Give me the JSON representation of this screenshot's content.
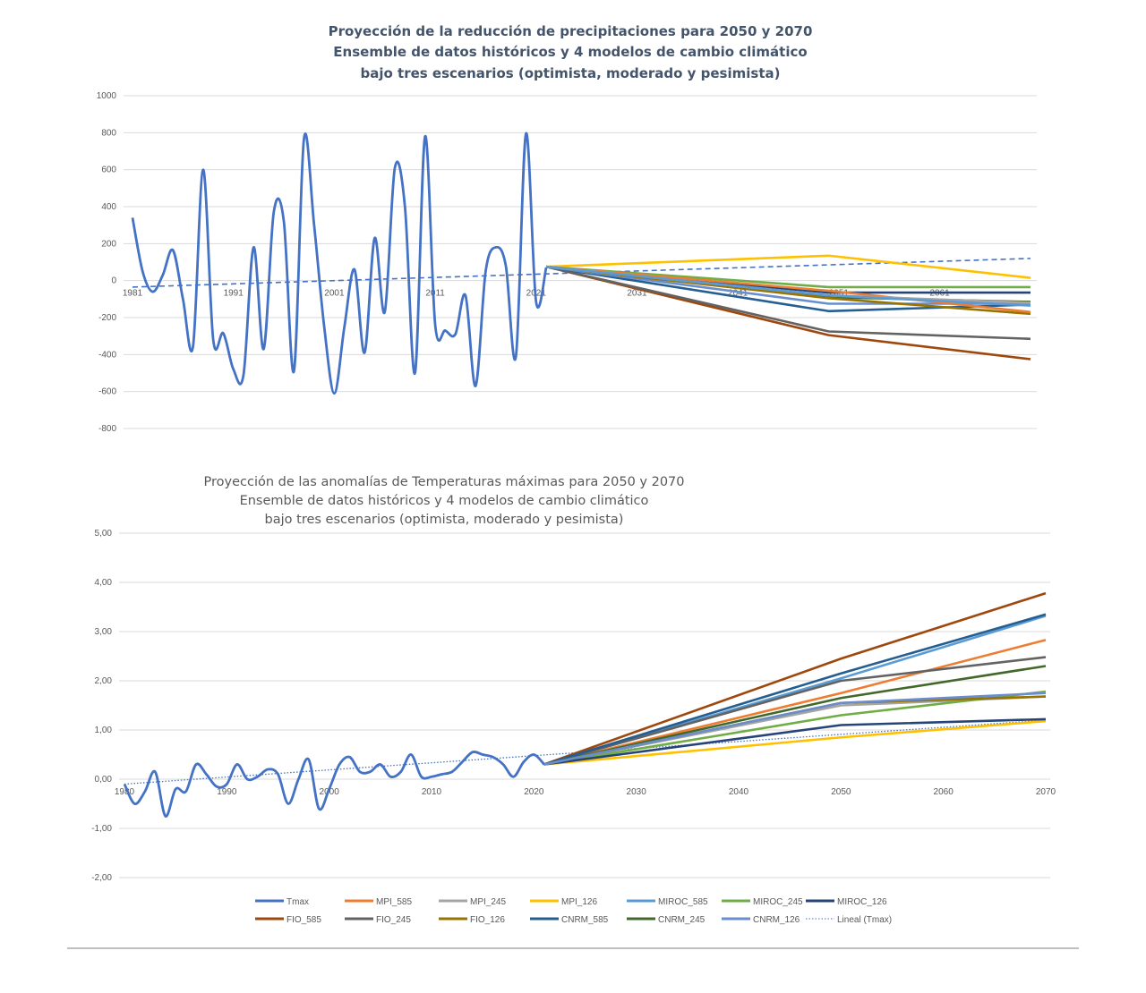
{
  "chart_data": [
    {
      "type": "line",
      "title": [
        "Proyección de la reducción de precipitaciones para 2050 y 2070",
        "Ensemble de datos históricos y  4 modelos de cambio climático",
        "bajo tres escenarios (optimista, moderado y pesimista)"
      ],
      "xlabel": "",
      "ylabel": "",
      "xlim": [
        1981,
        2070
      ],
      "ylim": [
        -800,
        1000
      ],
      "y_ticks": [
        "1000",
        "800",
        "600",
        "400",
        "200",
        "0",
        "-200",
        "-400",
        "-600",
        "-800"
      ],
      "x_ticks": [
        "1981",
        "1991",
        "2001",
        "2011",
        "2021",
        "2031",
        "2041",
        "2051",
        "2061"
      ],
      "grid": true,
      "legend": "none",
      "historical": {
        "color": "#4472C4",
        "x": [
          1981,
          1982,
          1983,
          1984,
          1985,
          1986,
          1987,
          1988,
          1989,
          1990,
          1991,
          1992,
          1993,
          1994,
          1995,
          1996,
          1997,
          1998,
          1999,
          2000,
          2001,
          2002,
          2003,
          2004,
          2005,
          2006,
          2007,
          2008,
          2009,
          2010,
          2011,
          2012,
          2013,
          2014,
          2015,
          2016,
          2017,
          2018,
          2019,
          2020,
          2021,
          2022
        ],
        "y": [
          340,
          50,
          -60,
          30,
          165,
          -100,
          -355,
          600,
          -320,
          -285,
          -480,
          -510,
          180,
          -370,
          370,
          320,
          -490,
          770,
          300,
          -250,
          -610,
          -250,
          60,
          -390,
          230,
          -170,
          610,
          400,
          -500,
          780,
          -240,
          -270,
          -290,
          -80,
          -570,
          50,
          180,
          80,
          -410,
          795,
          -115,
          70
        ]
      },
      "trend": {
        "color": "#4472C4",
        "x": [
          1981,
          2070
        ],
        "y": [
          -35,
          120
        ]
      },
      "projections": {
        "x": [
          2022,
          2050,
          2070
        ],
        "series": [
          {
            "color": "#FFC000",
            "values": [
              75,
              135,
              15
            ]
          },
          {
            "color": "#9E480E",
            "values": [
              75,
              -295,
              -425
            ]
          },
          {
            "color": "#636363",
            "values": [
              75,
              -275,
              -315
            ]
          },
          {
            "color": "#255E91",
            "values": [
              75,
              -165,
              -130
            ]
          },
          {
            "color": "#698ED0",
            "values": [
              75,
              -125,
              -125
            ]
          },
          {
            "color": "#264478",
            "values": [
              75,
              -65,
              -65
            ]
          },
          {
            "color": "#70AD47",
            "values": [
              75,
              -35,
              -35
            ]
          },
          {
            "color": "#43682B",
            "values": [
              75,
              -90,
              -115
            ]
          },
          {
            "color": "#997300",
            "values": [
              75,
              -95,
              -180
            ]
          },
          {
            "color": "#ED7D31",
            "values": [
              75,
              -55,
              -170
            ]
          },
          {
            "color": "#A5A5A5",
            "values": [
              75,
              -80,
              -120
            ]
          },
          {
            "color": "#5B9BD5",
            "values": [
              75,
              -80,
              -135
            ]
          }
        ]
      }
    },
    {
      "type": "line",
      "title": [
        "Proyección  de las anomalías de Temperaturas máximas para 2050 y 2070",
        "Ensemble de datos históricos y 4 modelos de cambio climático",
        "bajo tres escenarios (optimista, moderado y pesimista)"
      ],
      "xlabel": "",
      "ylabel": "",
      "xlim": [
        1980,
        2070
      ],
      "ylim": [
        -2,
        5
      ],
      "y_ticks": [
        "5,00",
        "4,00",
        "3,00",
        "2,00",
        "1,00",
        "0,00",
        "-1,00",
        "-2,00"
      ],
      "x_ticks": [
        "1980",
        "1990",
        "2000",
        "2010",
        "2020",
        "2030",
        "2040",
        "2050",
        "2060",
        "2070"
      ],
      "grid": true,
      "legend": "bottom",
      "historical": {
        "name": "Tmax",
        "color": "#4472C4",
        "x": [
          1980,
          1981,
          1982,
          1983,
          1984,
          1985,
          1986,
          1987,
          1988,
          1989,
          1990,
          1991,
          1992,
          1993,
          1994,
          1995,
          1996,
          1997,
          1998,
          1999,
          2000,
          2001,
          2002,
          2003,
          2004,
          2005,
          2006,
          2007,
          2008,
          2009,
          2010,
          2011,
          2012,
          2013,
          2014,
          2015,
          2016,
          2017,
          2018,
          2019,
          2020,
          2021
        ],
        "y": [
          -0.1,
          -0.5,
          -0.25,
          0.15,
          -0.75,
          -0.2,
          -0.25,
          0.3,
          0.1,
          -0.15,
          -0.1,
          0.3,
          0.0,
          0.05,
          0.2,
          0.1,
          -0.5,
          0.0,
          0.4,
          -0.6,
          -0.2,
          0.3,
          0.45,
          0.15,
          0.15,
          0.3,
          0.05,
          0.15,
          0.5,
          0.05,
          0.05,
          0.1,
          0.15,
          0.35,
          0.55,
          0.5,
          0.45,
          0.3,
          0.05,
          0.35,
          0.5,
          0.3
        ]
      },
      "trend": {
        "name": "Lineal (Tmax)",
        "color": "#4472C4",
        "x": [
          1980,
          2070
        ],
        "y": [
          -0.1,
          1.2
        ]
      },
      "projections": {
        "x": [
          2021,
          2050,
          2070
        ],
        "series": [
          {
            "name": "MPI_585",
            "color": "#ED7D31",
            "values": [
              0.3,
              1.75,
              2.83
            ]
          },
          {
            "name": "MPI_245",
            "color": "#A5A5A5",
            "values": [
              0.3,
              1.5,
              1.68
            ]
          },
          {
            "name": "MPI_126",
            "color": "#FFC000",
            "values": [
              0.3,
              0.85,
              1.18
            ]
          },
          {
            "name": "MIROC_585",
            "color": "#5B9BD5",
            "values": [
              0.3,
              2.05,
              3.32
            ]
          },
          {
            "name": "MIROC_245",
            "color": "#70AD47",
            "values": [
              0.3,
              1.3,
              1.78
            ]
          },
          {
            "name": "MIROC_126",
            "color": "#264478",
            "values": [
              0.3,
              1.1,
              1.22
            ]
          },
          {
            "name": "FIO_585",
            "color": "#9E480E",
            "values": [
              0.3,
              2.45,
              3.78
            ]
          },
          {
            "name": "FIO_245",
            "color": "#636363",
            "values": [
              0.3,
              2.0,
              2.48
            ]
          },
          {
            "name": "FIO_126",
            "color": "#997300",
            "values": [
              0.3,
              1.55,
              1.68
            ]
          },
          {
            "name": "CNRM_585",
            "color": "#255E91",
            "values": [
              0.3,
              2.15,
              3.35
            ]
          },
          {
            "name": "CNRM_245",
            "color": "#43682B",
            "values": [
              0.3,
              1.65,
              2.3
            ]
          },
          {
            "name": "CNRM_126",
            "color": "#698ED0",
            "values": [
              0.3,
              1.55,
              1.75
            ]
          }
        ]
      }
    }
  ]
}
